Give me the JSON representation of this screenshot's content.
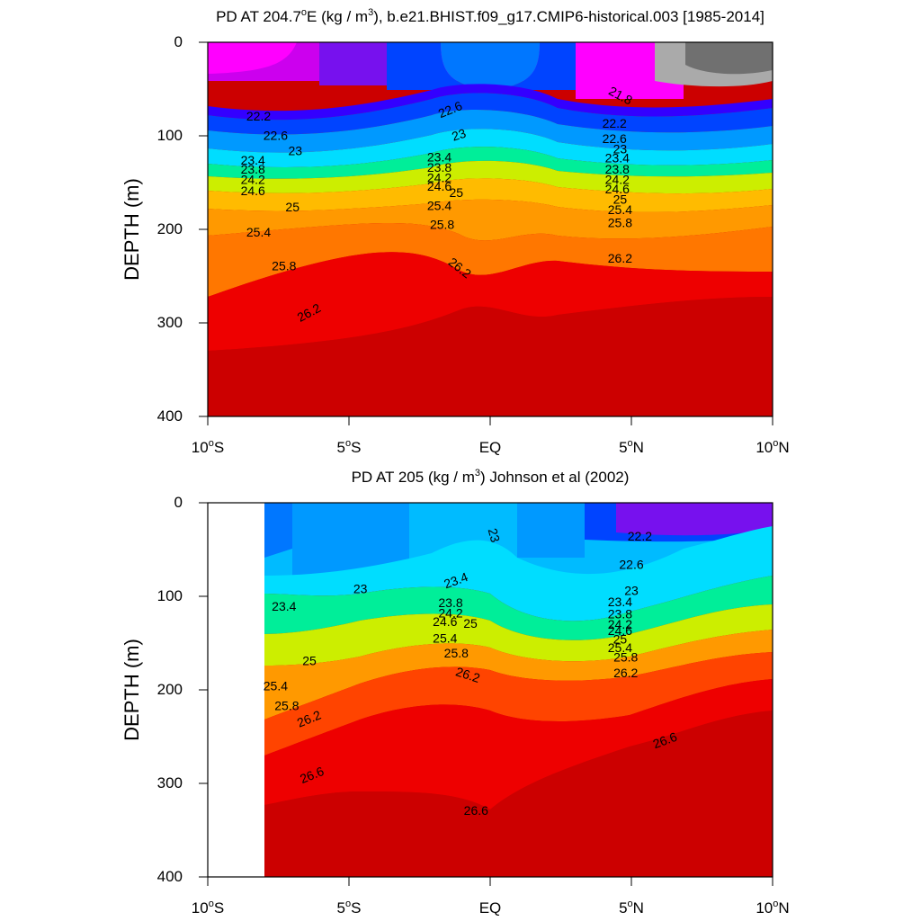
{
  "chart_data": [
    {
      "type": "contour",
      "title": "PD AT 204.7°E (kg / m³), b.e21.BHIST.f09_g17.CMIP6-historical.003 [1985-2014]",
      "title_parts": {
        "pre": "PD AT 204.7",
        "sup1": "o",
        "mid": "E (kg / m",
        "sup2": "3",
        "post": "), b.e21.BHIST.f09_g17.CMIP6-historical.003 [1985-2014]"
      },
      "ylabel": "DEPTH (m)",
      "xlim": [
        -10,
        10
      ],
      "ylim": [
        0,
        400
      ],
      "y_inverted": true,
      "x_ticks": [
        {
          "v": -10,
          "num": "10",
          "sup": "o",
          "hem": "S"
        },
        {
          "v": -5,
          "num": "5",
          "sup": "o",
          "hem": "S"
        },
        {
          "v": 0,
          "num": "EQ",
          "sup": "",
          "hem": ""
        },
        {
          "v": 5,
          "num": "5",
          "sup": "o",
          "hem": "N"
        },
        {
          "v": 10,
          "num": "10",
          "sup": "o",
          "hem": "N"
        }
      ],
      "y_ticks": [
        "0",
        "100",
        "200",
        "300",
        "400"
      ],
      "y_tick_values": [
        0,
        100,
        200,
        300,
        400
      ],
      "data_x_range": [
        -10,
        10
      ],
      "data_y_range": [
        5,
        400
      ],
      "fill_colors": [
        "#707070",
        "#aaaaaa",
        "#ff00ff",
        "#cc00ee",
        "#7711ee",
        "#3300ff",
        "#0044ff",
        "#0077ff",
        "#0099ff",
        "#00bbff",
        "#00ddff",
        "#00eecc",
        "#00ee99",
        "#00ee00",
        "#88ee00",
        "#ccee00",
        "#ffff00",
        "#ffdd00",
        "#ffbb00",
        "#ffaa11",
        "#ff9900",
        "#ff7700",
        "#ff4400",
        "#ff1100",
        "#ee0000",
        "#dd0000",
        "#cc0000",
        "#bb0000"
      ],
      "contour_labels": [
        {
          "text": "21.8",
          "x": 4.6,
          "y": 58,
          "rot": 28
        },
        {
          "text": "22.2",
          "x": -8.2,
          "y": 80,
          "rot": 0
        },
        {
          "text": "22.2",
          "x": 4.4,
          "y": 88,
          "rot": 0
        },
        {
          "text": "22.6",
          "x": -7.6,
          "y": 101,
          "rot": 0
        },
        {
          "text": "22.6",
          "x": -1.4,
          "y": 73,
          "rot": -22
        },
        {
          "text": "22.6",
          "x": 4.4,
          "y": 104,
          "rot": 0
        },
        {
          "text": "23",
          "x": -6.9,
          "y": 117,
          "rot": 0
        },
        {
          "text": "23",
          "x": -1.1,
          "y": 100,
          "rot": -18
        },
        {
          "text": "23",
          "x": 4.6,
          "y": 115,
          "rot": 0
        },
        {
          "text": "23.4",
          "x": -8.4,
          "y": 127,
          "rot": 0
        },
        {
          "text": "23.4",
          "x": -1.8,
          "y": 124,
          "rot": 0
        },
        {
          "text": "23.4",
          "x": 4.5,
          "y": 125,
          "rot": 0
        },
        {
          "text": "23.8",
          "x": -8.4,
          "y": 137,
          "rot": 0
        },
        {
          "text": "23.8",
          "x": -1.8,
          "y": 135,
          "rot": 0
        },
        {
          "text": "23.8",
          "x": 4.5,
          "y": 137,
          "rot": 0
        },
        {
          "text": "24.2",
          "x": -8.4,
          "y": 148,
          "rot": 0
        },
        {
          "text": "24.2",
          "x": -1.8,
          "y": 146,
          "rot": 0
        },
        {
          "text": "24.2",
          "x": 4.5,
          "y": 148,
          "rot": 0
        },
        {
          "text": "24.6",
          "x": -8.4,
          "y": 160,
          "rot": 0
        },
        {
          "text": "24.6",
          "x": -1.8,
          "y": 155,
          "rot": 0
        },
        {
          "text": "24.6",
          "x": 4.5,
          "y": 158,
          "rot": 0
        },
        {
          "text": "25",
          "x": -7.0,
          "y": 177,
          "rot": 0
        },
        {
          "text": "25",
          "x": -1.2,
          "y": 162,
          "rot": 0
        },
        {
          "text": "25",
          "x": 4.6,
          "y": 169,
          "rot": 0
        },
        {
          "text": "25.4",
          "x": -8.2,
          "y": 204,
          "rot": 0
        },
        {
          "text": "25.4",
          "x": -1.8,
          "y": 176,
          "rot": 0
        },
        {
          "text": "25.4",
          "x": 4.6,
          "y": 180,
          "rot": 0
        },
        {
          "text": "25.8",
          "x": -7.3,
          "y": 240,
          "rot": 0
        },
        {
          "text": "25.8",
          "x": -1.7,
          "y": 196,
          "rot": 0
        },
        {
          "text": "25.8",
          "x": 4.6,
          "y": 194,
          "rot": 0
        },
        {
          "text": "26.2",
          "x": -6.4,
          "y": 290,
          "rot": -28
        },
        {
          "text": "26.2",
          "x": -1.1,
          "y": 242,
          "rot": 38
        },
        {
          "text": "26.2",
          "x": 4.6,
          "y": 232,
          "rot": 0
        }
      ]
    },
    {
      "type": "contour",
      "title": "PD AT 205 (kg / m³) Johnson et al (2002)",
      "title_parts": {
        "pre": "PD AT 205 (kg / m",
        "sup1": "",
        "mid": "",
        "sup2": "3",
        "post": ") Johnson et al (2002)"
      },
      "ylabel": "DEPTH (m)",
      "xlim": [
        -10,
        10
      ],
      "ylim": [
        0,
        400
      ],
      "y_inverted": true,
      "x_ticks": [
        {
          "v": -10,
          "num": "10",
          "sup": "o",
          "hem": "S"
        },
        {
          "v": -5,
          "num": "5",
          "sup": "o",
          "hem": "S"
        },
        {
          "v": 0,
          "num": "EQ",
          "sup": "",
          "hem": ""
        },
        {
          "v": 5,
          "num": "5",
          "sup": "o",
          "hem": "N"
        },
        {
          "v": 10,
          "num": "10",
          "sup": "o",
          "hem": "N"
        }
      ],
      "y_ticks": [
        "0",
        "100",
        "200",
        "300",
        "400"
      ],
      "y_tick_values": [
        0,
        100,
        200,
        300,
        400
      ],
      "data_x_range": [
        -8,
        10
      ],
      "data_y_range": [
        5,
        400
      ],
      "fill_colors": [
        "#7711ee",
        "#3300ff",
        "#0044ff",
        "#0077ff",
        "#0099ff",
        "#00bbff",
        "#00ddff",
        "#00eecc",
        "#00ee99",
        "#00ee00",
        "#88ee00",
        "#ccee00",
        "#ffff00",
        "#ffdd00",
        "#ffbb00",
        "#ffaa11",
        "#ff9900",
        "#ff7700",
        "#ff4400",
        "#ff1100",
        "#ee0000",
        "#dd0000",
        "#cc0000",
        "#bb0000"
      ],
      "contour_labels": [
        {
          "text": "22.2",
          "x": 5.3,
          "y": 37,
          "rot": 0
        },
        {
          "text": "22.6",
          "x": 5.0,
          "y": 67,
          "rot": 0
        },
        {
          "text": "23",
          "x": 0.1,
          "y": 35,
          "rot": 75
        },
        {
          "text": "23",
          "x": -4.6,
          "y": 93,
          "rot": 0
        },
        {
          "text": "23",
          "x": 5.0,
          "y": 95,
          "rot": 0
        },
        {
          "text": "23.4",
          "x": -7.3,
          "y": 112,
          "rot": 0
        },
        {
          "text": "23.4",
          "x": -1.2,
          "y": 84,
          "rot": -20
        },
        {
          "text": "23.4",
          "x": 4.6,
          "y": 107,
          "rot": 0
        },
        {
          "text": "23.8",
          "x": -1.4,
          "y": 108,
          "rot": 0
        },
        {
          "text": "23.8",
          "x": 4.6,
          "y": 120,
          "rot": 0
        },
        {
          "text": "24.2",
          "x": -1.4,
          "y": 119,
          "rot": 0
        },
        {
          "text": "24.2",
          "x": 4.6,
          "y": 131,
          "rot": 0
        },
        {
          "text": "24.6",
          "x": -1.6,
          "y": 128,
          "rot": 0
        },
        {
          "text": "24.6",
          "x": 4.6,
          "y": 138,
          "rot": 0
        },
        {
          "text": "25",
          "x": -0.7,
          "y": 130,
          "rot": 0
        },
        {
          "text": "25",
          "x": -6.4,
          "y": 170,
          "rot": 0
        },
        {
          "text": "25",
          "x": 4.6,
          "y": 147,
          "rot": 0
        },
        {
          "text": "25.4",
          "x": -1.6,
          "y": 146,
          "rot": 0
        },
        {
          "text": "25.4",
          "x": -7.6,
          "y": 197,
          "rot": 0
        },
        {
          "text": "25.4",
          "x": 4.6,
          "y": 156,
          "rot": 0
        },
        {
          "text": "25.8",
          "x": -1.2,
          "y": 162,
          "rot": 0
        },
        {
          "text": "25.8",
          "x": -7.2,
          "y": 218,
          "rot": 0
        },
        {
          "text": "25.8",
          "x": 4.8,
          "y": 166,
          "rot": 0
        },
        {
          "text": "26.2",
          "x": -0.8,
          "y": 185,
          "rot": 18
        },
        {
          "text": "26.2",
          "x": -6.4,
          "y": 232,
          "rot": -22
        },
        {
          "text": "26.2",
          "x": 4.8,
          "y": 183,
          "rot": 0
        },
        {
          "text": "26.6",
          "x": 6.2,
          "y": 255,
          "rot": -20
        },
        {
          "text": "26.6",
          "x": -6.3,
          "y": 292,
          "rot": -22
        },
        {
          "text": "26.6",
          "x": -0.5,
          "y": 330,
          "rot": 0
        }
      ]
    }
  ]
}
